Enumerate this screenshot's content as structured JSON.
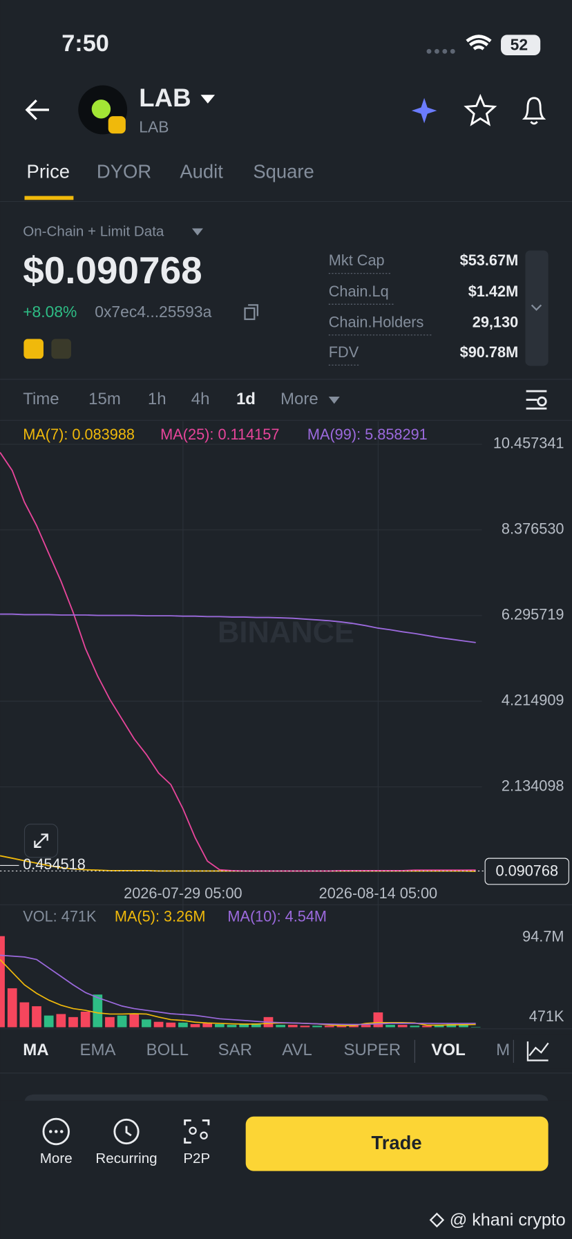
{
  "status_bar": {
    "time": "7:50",
    "battery": "52"
  },
  "header": {
    "title": "LAB",
    "subtitle": "LAB"
  },
  "tabs": [
    "Price",
    "DYOR",
    "Audit",
    "Square"
  ],
  "data_source": "On-Chain + Limit Data",
  "price": "$0.090768",
  "change": "+8.08%",
  "address": "0x7ec4...25593a",
  "stats": [
    {
      "label": "Mkt Cap",
      "value": "$53.67M"
    },
    {
      "label": "Chain.Lq",
      "value": "$1.42M"
    },
    {
      "label": "Chain.Holders",
      "value": "29,130"
    },
    {
      "label": "FDV",
      "value": "$90.78M"
    }
  ],
  "intervals": [
    "Time",
    "15m",
    "1h",
    "4h",
    "1d",
    "More"
  ],
  "chart_watermark": "BINANCE",
  "chart_data": [
    {
      "type": "line",
      "categories": [
        null,
        null,
        null,
        null,
        null,
        null,
        null,
        null,
        null,
        null,
        null,
        null,
        null,
        null,
        null,
        "2026-07-29 05:00",
        null,
        null,
        null,
        null,
        null,
        null,
        null,
        null,
        null,
        null,
        null,
        null,
        null,
        null,
        null,
        "2026-08-14 05:00",
        null,
        null,
        null,
        null,
        null,
        null,
        null,
        null
      ],
      "series": [
        {
          "name": "MA(7): 0.083988",
          "color": "#f0b90b",
          "values": [
            0.46,
            0.4,
            0.34,
            0.28,
            0.22,
            0.17,
            0.14,
            0.12,
            0.11,
            0.1,
            0.1,
            0.1,
            0.1,
            0.09,
            0.09,
            0.09,
            0.09,
            0.09,
            0.09,
            0.09,
            0.09,
            0.09,
            0.09,
            0.09,
            0.09,
            0.09,
            0.09,
            0.09,
            0.09,
            0.09,
            0.09,
            0.09,
            0.09,
            0.09,
            0.09,
            0.09,
            0.09,
            0.09,
            0.09,
            0.083988
          ]
        },
        {
          "name": "MA(25): 0.114157",
          "color": "#e8459b",
          "values": [
            10.26,
            9.82,
            9.05,
            8.48,
            7.8,
            7.13,
            6.37,
            5.5,
            4.83,
            4.26,
            3.78,
            3.3,
            2.92,
            2.47,
            2.19,
            1.6,
            0.9,
            0.33,
            0.12,
            0.1,
            0.09,
            0.09,
            0.09,
            0.09,
            0.09,
            0.09,
            0.09,
            0.09,
            0.1,
            0.1,
            0.1,
            0.1,
            0.1,
            0.1,
            0.11,
            0.11,
            0.11,
            0.11,
            0.11,
            0.114157
          ]
        },
        {
          "name": "MA(99): 5.858291",
          "color": "#9c6ade",
          "values": [
            6.33,
            6.33,
            6.32,
            6.32,
            6.32,
            6.31,
            6.31,
            6.31,
            6.3,
            6.3,
            6.3,
            6.3,
            6.29,
            6.29,
            6.29,
            6.28,
            6.28,
            6.27,
            6.27,
            6.26,
            6.26,
            6.25,
            6.25,
            6.24,
            6.23,
            6.21,
            6.19,
            6.17,
            6.14,
            6.1,
            6.05,
            5.99,
            5.95,
            5.9,
            5.86,
            5.81,
            5.76,
            5.72,
            5.68,
            5.64
          ]
        }
      ],
      "ylim": [
        -0.25,
        10.98
      ],
      "yticks": [
        10.457341,
        {
          "value": 8.37653,
          "label": "8.376530"
        },
        6.295719,
        4.214909,
        2.134098
      ],
      "last_price": 0.090768,
      "high_label": 0.454518,
      "grid": true
    },
    {
      "type": "bar",
      "series": [
        {
          "name": "VOL: 471K",
          "values": [
            107600000,
            46000000,
            29400000,
            24800000,
            13800000,
            15600000,
            12000000,
            18400000,
            38600000,
            12000000,
            13800000,
            15600000,
            9200000,
            6400000,
            5500000,
            5500000,
            3700000,
            4600000,
            3700000,
            2800000,
            3700000,
            4600000,
            12000000,
            2800000,
            2800000,
            1800000,
            1800000,
            1800000,
            1800000,
            2800000,
            2800000,
            17500000,
            2800000,
            2800000,
            1800000,
            1800000,
            2800000,
            3700000,
            3700000,
            471000
          ],
          "colors": [
            "#f6465d",
            "#f6465d",
            "#f6465d",
            "#f6465d",
            "#2ebd85",
            "#f6465d",
            "#f6465d",
            "#f6465d",
            "#2ebd85",
            "#f6465d",
            "#2ebd85",
            "#f6465d",
            "#2ebd85",
            "#f6465d",
            "#f6465d",
            "#2ebd85",
            "#f6465d",
            "#f6465d",
            "#2ebd85",
            "#2ebd85",
            "#2ebd85",
            "#2ebd85",
            "#f6465d",
            "#2ebd85",
            "#f6465d",
            "#f6465d",
            "#2ebd85",
            "#f6465d",
            "#f6465d",
            "#f6465d",
            "#f6465d",
            "#f6465d",
            "#2ebd85",
            "#f6465d",
            "#2ebd85",
            "#f6465d",
            "#2ebd85",
            "#2ebd85",
            "#2ebd85",
            "#2ebd85"
          ]
        },
        {
          "name": "MA(5): 3.26M",
          "type": "line",
          "color": "#f0b90b",
          "values": [
            80000000,
            65000000,
            50000000,
            40000000,
            32000000,
            26000000,
            22000000,
            20000000,
            17000000,
            15600000,
            15600000,
            16000000,
            15600000,
            12000000,
            9000000,
            8000000,
            6000000,
            5000000,
            4600000,
            4000000,
            3700000,
            3700000,
            4600000,
            5000000,
            5000000,
            4600000,
            4000000,
            2800000,
            2000000,
            2000000,
            4600000,
            5500000,
            5500000,
            5500000,
            5000000,
            2500000,
            2500000,
            2800000,
            3000000,
            3260000
          ]
        },
        {
          "name": "MA(10): 4.54M",
          "type": "line",
          "color": "#9c6ade",
          "values": [
            85000000,
            84000000,
            83000000,
            80000000,
            70000000,
            60000000,
            50000000,
            41000000,
            35000000,
            30000000,
            25000000,
            22000000,
            20000000,
            18000000,
            16000000,
            15000000,
            14000000,
            12000000,
            10000000,
            9000000,
            8000000,
            7000000,
            6000000,
            5500000,
            5000000,
            4600000,
            4000000,
            3700000,
            3500000,
            3300000,
            3500000,
            4000000,
            4600000,
            4600000,
            4600000,
            4600000,
            4500000,
            4500000,
            4500000,
            4540000
          ]
        }
      ],
      "ylim": [
        0,
        112000000
      ],
      "yticks": [
        {
          "value": 94700000,
          "label": "94.7M"
        },
        {
          "value": 471000,
          "label": "471K"
        }
      ],
      "grid": true
    }
  ],
  "indicators": [
    "MA",
    "EMA",
    "BOLL",
    "SAR",
    "AVL",
    "SUPER",
    "VOL",
    "M"
  ],
  "actions": [
    "More",
    "Recurring",
    "P2P"
  ],
  "trade_button": "Trade",
  "watermark": "@ khani crypto"
}
